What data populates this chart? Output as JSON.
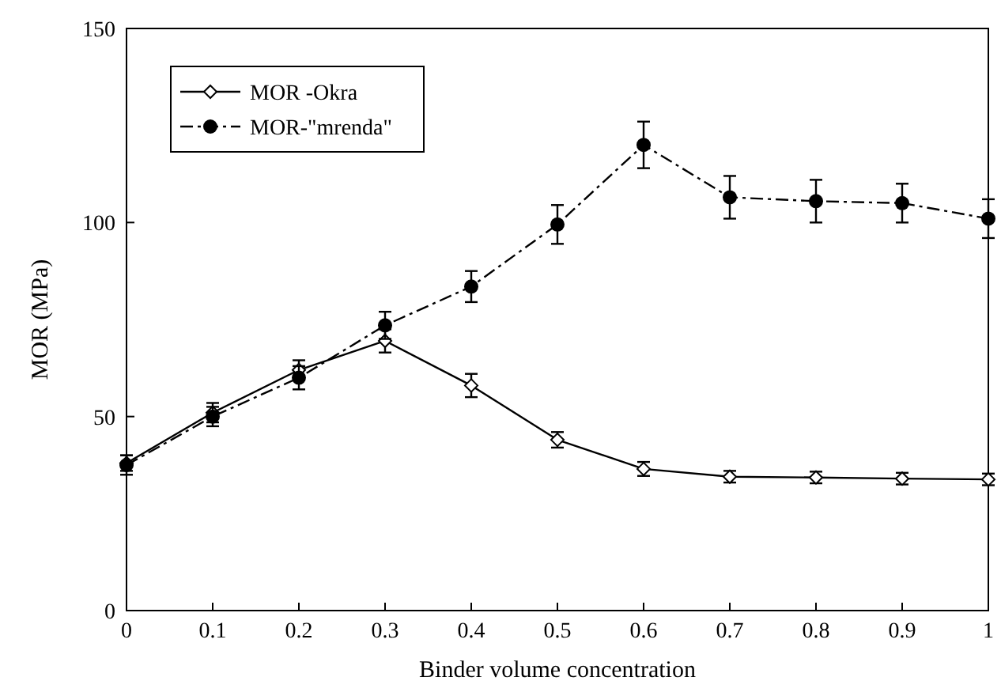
{
  "chart_data": {
    "type": "line",
    "xlabel": "Binder volume concentration",
    "ylabel": "MOR (MPa)",
    "x": [
      0,
      0.1,
      0.2,
      0.3,
      0.4,
      0.5,
      0.6,
      0.7,
      0.8,
      0.9,
      1
    ],
    "xlim": [
      0,
      1
    ],
    "xticks": [
      0,
      0.1,
      0.2,
      0.3,
      0.4,
      0.5,
      0.6,
      0.7,
      0.8,
      0.9,
      1
    ],
    "ylim": [
      0,
      150
    ],
    "yticks": [
      0,
      50,
      100,
      150
    ],
    "grid": false,
    "legend": "top left",
    "series": [
      {
        "name": "MOR -Okra",
        "color": "#000000",
        "marker": "diamond",
        "line_style": "solid",
        "values": [
          38,
          51,
          62,
          69.5,
          58,
          44,
          36.5,
          34.5,
          34.3,
          34,
          33.8
        ],
        "errors": [
          2,
          2.5,
          2.5,
          3,
          3,
          2,
          1.8,
          1.5,
          1.5,
          1.5,
          1.5
        ]
      },
      {
        "name": "MOR-\"mrenda\"",
        "color": "#000000",
        "marker": "circle",
        "line_style": "dashdot",
        "values": [
          37.5,
          50,
          60,
          73.5,
          83.5,
          99.5,
          120,
          106.5,
          105.5,
          105,
          101
        ],
        "errors": [
          2.5,
          2.5,
          3,
          3.5,
          4,
          5,
          6,
          5.5,
          5.5,
          5,
          5
        ]
      }
    ]
  }
}
